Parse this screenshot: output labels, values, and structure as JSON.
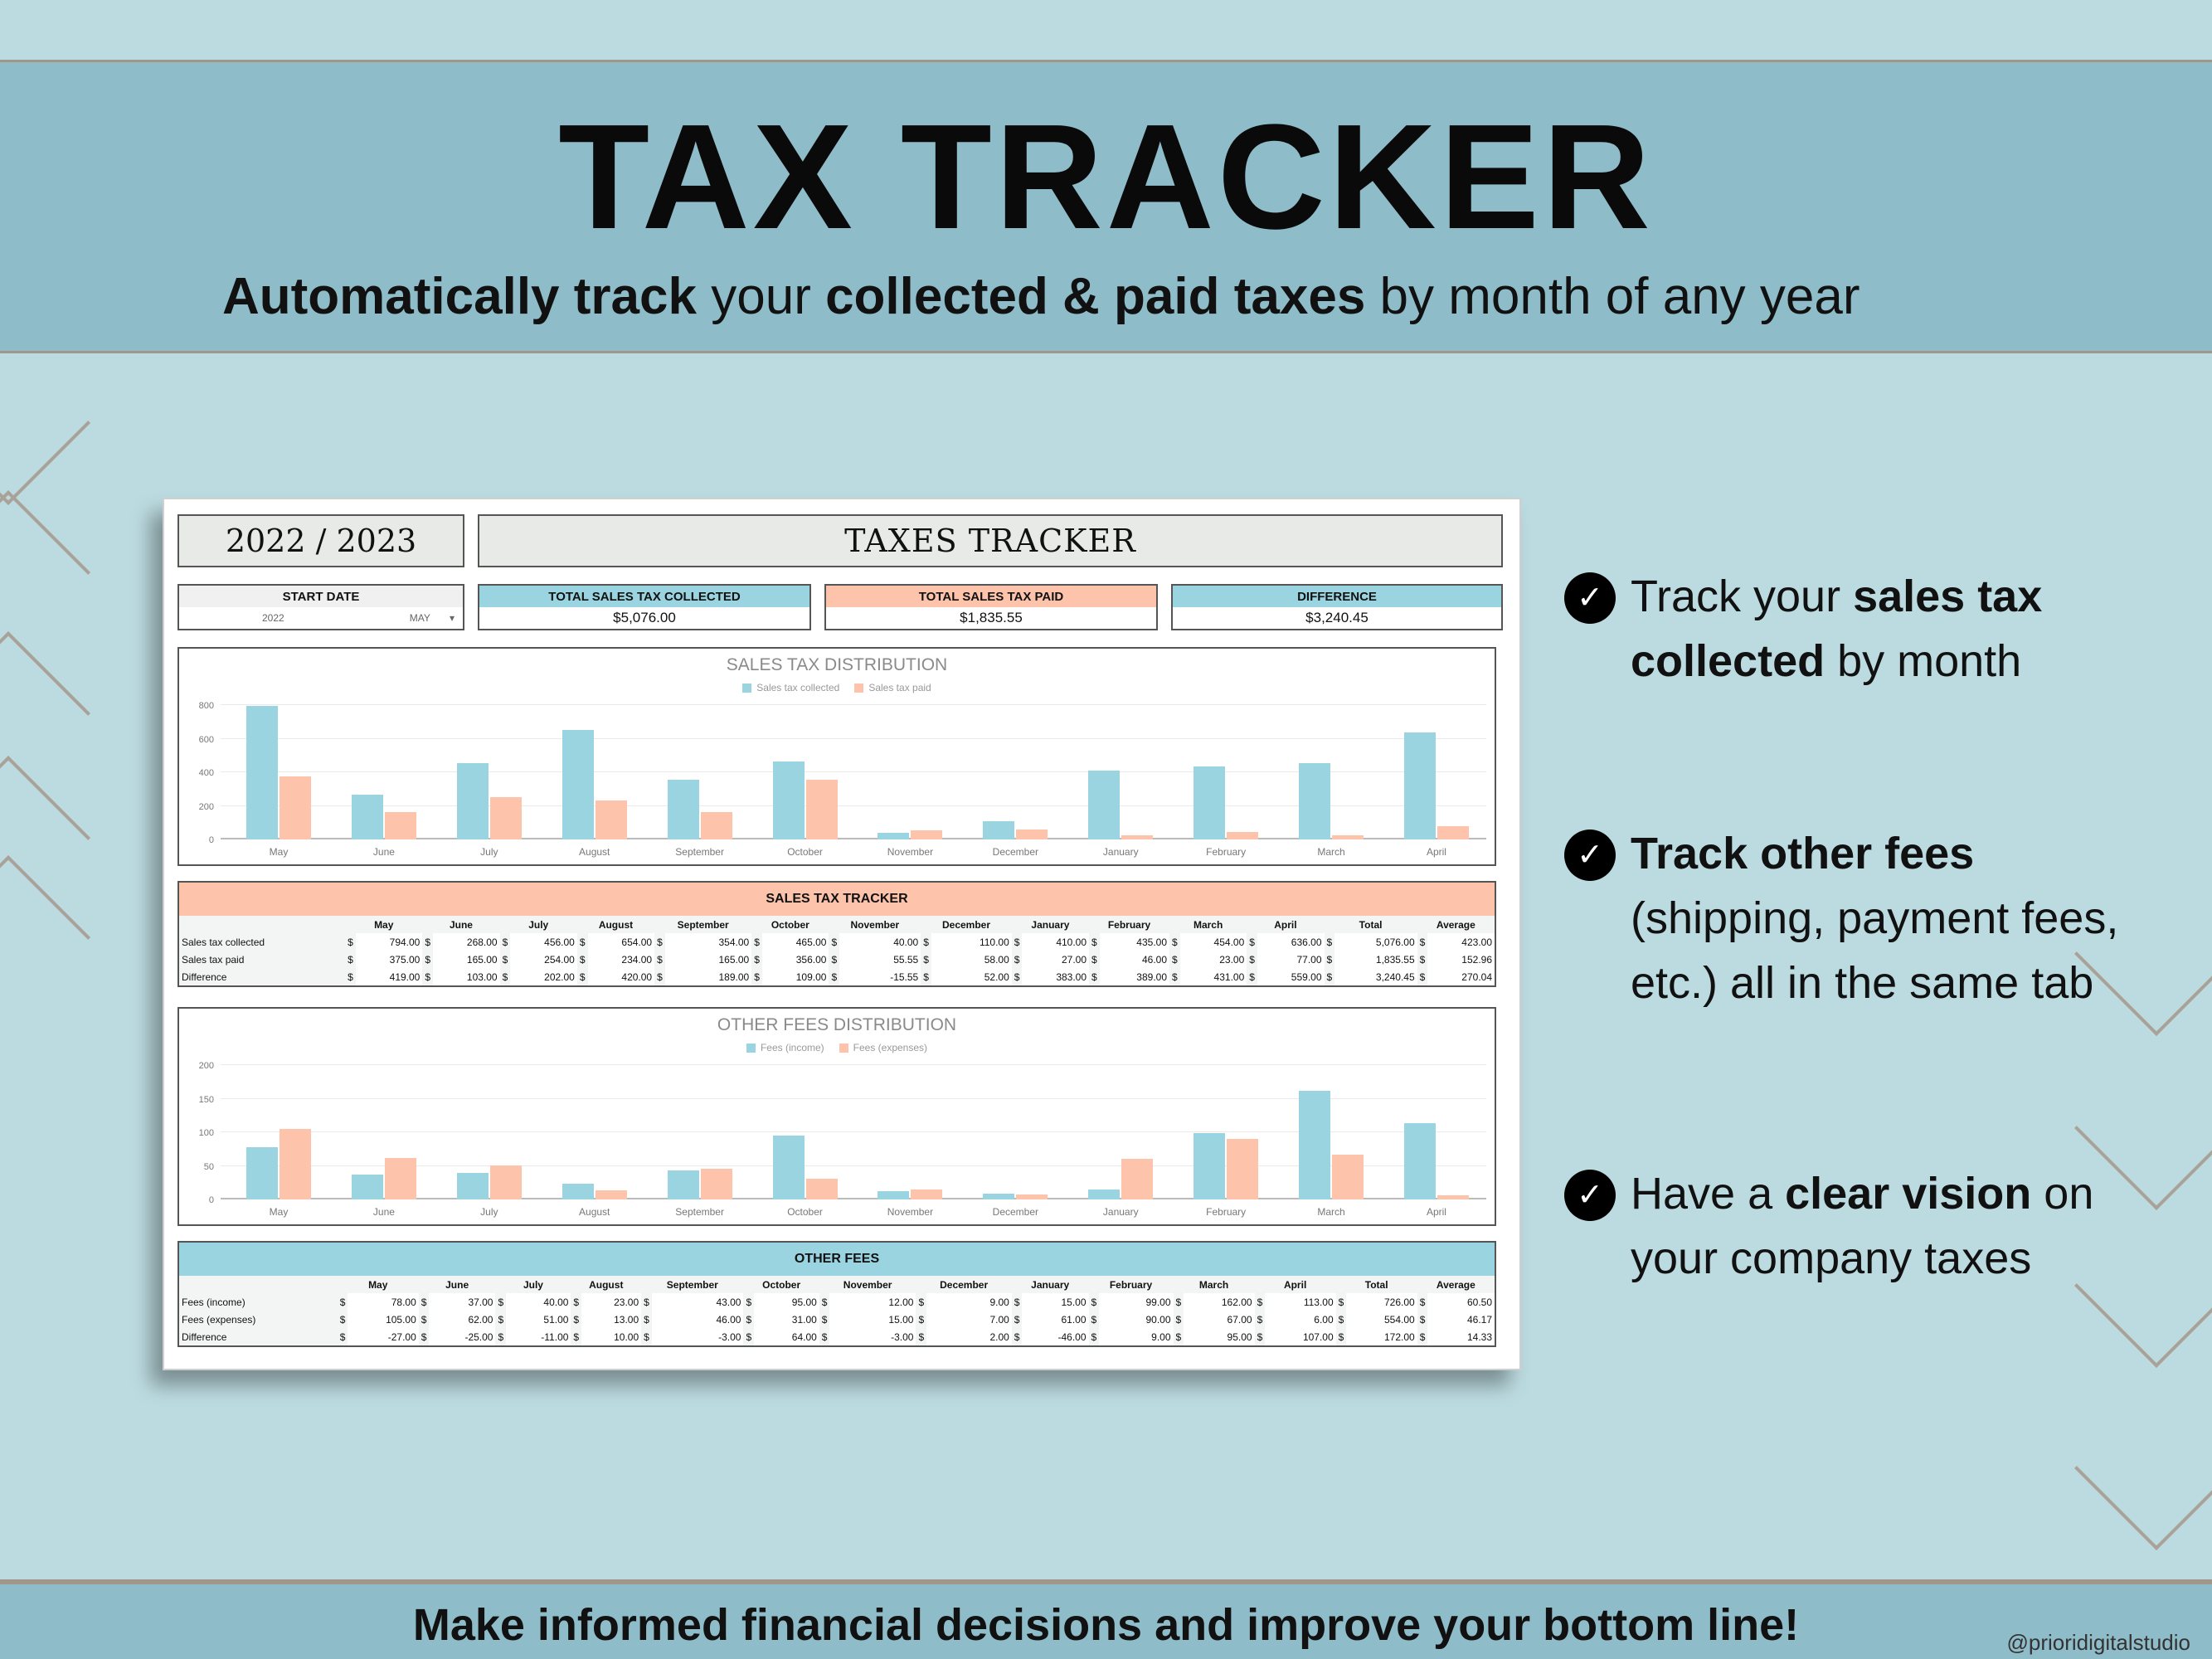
{
  "header": {
    "title": "TAX TRACKER",
    "subtitle_parts": [
      {
        "text": "Automatically track",
        "bold": true
      },
      {
        "text": " your ",
        "bold": false
      },
      {
        "text": "collected & paid taxes",
        "bold": true
      },
      {
        "text": " by month of any year",
        "bold": false
      }
    ]
  },
  "sheet": {
    "year_label": "2022 / 2023",
    "title": "TAXES TRACKER",
    "start_date": {
      "label": "START DATE",
      "year": "2022",
      "month": "MAY"
    },
    "cards": [
      {
        "label": "TOTAL SALES TAX COLLECTED",
        "value": "$5,076.00",
        "color": "#9ad4e0"
      },
      {
        "label": "TOTAL SALES TAX PAID",
        "value": "$1,835.55",
        "color": "#fdc3ab"
      },
      {
        "label": "DIFFERENCE",
        "value": "$3,240.45",
        "color": "#9ad4e0"
      }
    ],
    "months": [
      "May",
      "June",
      "July",
      "August",
      "September",
      "October",
      "November",
      "December",
      "January",
      "February",
      "March",
      "April"
    ],
    "sales_table": {
      "title": "SALES TAX TRACKER",
      "header_color": "#fdc3ab",
      "columns": [
        "May",
        "June",
        "July",
        "August",
        "September",
        "October",
        "November",
        "December",
        "January",
        "February",
        "March",
        "April",
        "Total",
        "Average"
      ],
      "rows": [
        {
          "label": "Sales tax collected",
          "values": [
            "794.00",
            "268.00",
            "456.00",
            "654.00",
            "354.00",
            "465.00",
            "40.00",
            "110.00",
            "410.00",
            "435.00",
            "454.00",
            "636.00",
            "5,076.00",
            "423.00"
          ]
        },
        {
          "label": "Sales tax paid",
          "values": [
            "375.00",
            "165.00",
            "254.00",
            "234.00",
            "165.00",
            "356.00",
            "55.55",
            "58.00",
            "27.00",
            "46.00",
            "23.00",
            "77.00",
            "1,835.55",
            "152.96"
          ]
        },
        {
          "label": "Difference",
          "values": [
            "419.00",
            "103.00",
            "202.00",
            "420.00",
            "189.00",
            "109.00",
            "-15.55",
            "52.00",
            "383.00",
            "389.00",
            "431.00",
            "559.00",
            "3,240.45",
            "270.04"
          ]
        }
      ]
    },
    "fees_table": {
      "title": "OTHER FEES",
      "header_color": "#9ad4e0",
      "columns": [
        "May",
        "June",
        "July",
        "August",
        "September",
        "October",
        "November",
        "December",
        "January",
        "February",
        "March",
        "April",
        "Total",
        "Average"
      ],
      "rows": [
        {
          "label": "Fees (income)",
          "values": [
            "78.00",
            "37.00",
            "40.00",
            "23.00",
            "43.00",
            "95.00",
            "12.00",
            "9.00",
            "15.00",
            "99.00",
            "162.00",
            "113.00",
            "726.00",
            "60.50"
          ]
        },
        {
          "label": "Fees (expenses)",
          "values": [
            "105.00",
            "62.00",
            "51.00",
            "13.00",
            "46.00",
            "31.00",
            "15.00",
            "7.00",
            "61.00",
            "90.00",
            "67.00",
            "6.00",
            "554.00",
            "46.17"
          ]
        },
        {
          "label": "Difference",
          "values": [
            "-27.00",
            "-25.00",
            "-11.00",
            "10.00",
            "-3.00",
            "64.00",
            "-3.00",
            "2.00",
            "-46.00",
            "9.00",
            "95.00",
            "107.00",
            "172.00",
            "14.33"
          ]
        }
      ]
    },
    "currency_symbol": "$"
  },
  "chart_data": [
    {
      "type": "bar",
      "title": "SALES TAX DISTRIBUTION",
      "categories": [
        "May",
        "June",
        "July",
        "August",
        "September",
        "October",
        "November",
        "December",
        "January",
        "February",
        "March",
        "April"
      ],
      "series": [
        {
          "name": "Sales tax collected",
          "color": "#9ad4e0",
          "values": [
            794,
            268,
            456,
            654,
            354,
            465,
            40,
            110,
            410,
            435,
            454,
            636
          ]
        },
        {
          "name": "Sales tax paid",
          "color": "#fdc3ab",
          "values": [
            375,
            165,
            254,
            234,
            165,
            356,
            55.55,
            58,
            27,
            46,
            23,
            77
          ]
        }
      ],
      "yticks": [
        0,
        200,
        400,
        600,
        800
      ],
      "ylim": [
        0,
        800
      ],
      "legend_position": "top",
      "grid": true
    },
    {
      "type": "bar",
      "title": "OTHER FEES DISTRIBUTION",
      "categories": [
        "May",
        "June",
        "July",
        "August",
        "September",
        "October",
        "November",
        "December",
        "January",
        "February",
        "March",
        "April"
      ],
      "series": [
        {
          "name": "Fees (income)",
          "color": "#9ad4e0",
          "values": [
            78,
            37,
            40,
            23,
            43,
            95,
            12,
            9,
            15,
            99,
            162,
            113
          ]
        },
        {
          "name": "Fees (expenses)",
          "color": "#fdc3ab",
          "values": [
            105,
            62,
            51,
            13,
            46,
            31,
            15,
            7,
            61,
            90,
            67,
            6
          ]
        }
      ],
      "yticks": [
        0,
        50,
        100,
        150,
        200
      ],
      "ylim": [
        0,
        200
      ],
      "legend_position": "top",
      "grid": true
    }
  ],
  "features": [
    {
      "icon": "check-circle-icon",
      "parts": [
        {
          "text": "Track your ",
          "bold": false
        },
        {
          "text": "sales tax collected",
          "bold": true
        },
        {
          "text": " by month",
          "bold": false
        }
      ]
    },
    {
      "icon": "check-circle-icon",
      "parts": [
        {
          "text": "Track other fees",
          "bold": true
        },
        {
          "text": " (shipping, payment fees, etc.) all in the same tab",
          "bold": false
        }
      ]
    },
    {
      "icon": "check-circle-icon",
      "parts": [
        {
          "text": "Have a ",
          "bold": false
        },
        {
          "text": "clear vision",
          "bold": true
        },
        {
          "text": " on your company taxes",
          "bold": false
        }
      ]
    }
  ],
  "footer": {
    "message": "Make informed financial decisions and improve your bottom line!",
    "handle": "@prioridigitalstudio"
  }
}
